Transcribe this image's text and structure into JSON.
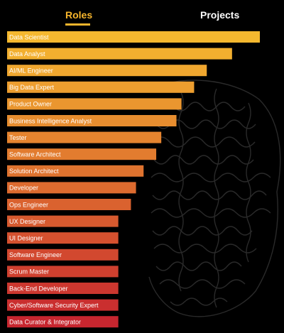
{
  "tabs": {
    "roles": "Roles",
    "projects": "Projects",
    "active": "Roles"
  },
  "colors": {
    "accent": "#f6b52c",
    "bar_start": "#f5b82f",
    "bar_end": "#c7262f"
  },
  "chart_data": {
    "type": "bar",
    "orientation": "horizontal",
    "title": "",
    "xlabel": "",
    "ylabel": "",
    "xlim": [
      0,
      100
    ],
    "categories": [
      "Data Scientist",
      "Data Analyst",
      "AI/ML Engineer",
      "Big Data Expert",
      "Product Owner",
      "Business Intelligence Analyst",
      "Tester",
      "Software Architect",
      "Solution Architect",
      "Developer",
      "Ops Engineer",
      "UX Designer",
      "UI Designer",
      "Software Engineer",
      "Scrum Master",
      "Back-End Developer",
      "Cyber/Software Security Expert",
      "Data Curator & Integrator"
    ],
    "values": [
      100,
      89,
      79,
      74,
      69,
      67,
      61,
      59,
      54,
      51,
      49,
      44,
      44,
      44,
      44,
      44,
      44,
      44
    ]
  }
}
